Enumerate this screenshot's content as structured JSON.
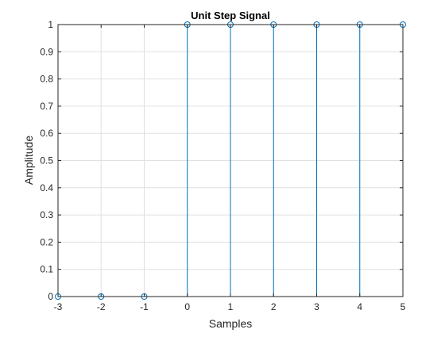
{
  "chart_data": {
    "type": "stem",
    "title": "Unit Step Signal",
    "xlabel": "Samples",
    "ylabel": "Amplitude",
    "xlim": [
      -3,
      5
    ],
    "ylim": [
      0,
      1
    ],
    "x": [
      -3,
      -2,
      -1,
      0,
      1,
      2,
      3,
      4,
      5
    ],
    "y": [
      0,
      0,
      0,
      1,
      1,
      1,
      1,
      1,
      1
    ],
    "xticks": [
      "-3",
      "-2",
      "-1",
      "0",
      "1",
      "2",
      "3",
      "4",
      "5"
    ],
    "yticks": [
      "0",
      "0.1",
      "0.2",
      "0.3",
      "0.4",
      "0.5",
      "0.6",
      "0.7",
      "0.8",
      "0.9",
      "1"
    ],
    "grid": true,
    "series_color": "#0072BD"
  }
}
